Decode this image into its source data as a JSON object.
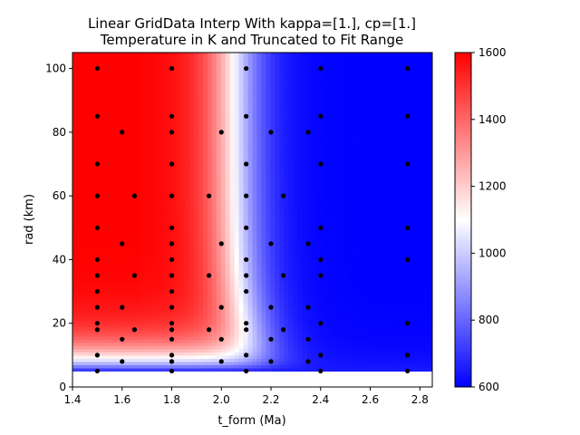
{
  "chart_data": {
    "type": "heatmap",
    "title_line1": "Linear GridData Interp With kappa=[1.], cp=[1.]",
    "title_line2": "Temperature in K and Truncated to Fit Range",
    "xlabel": "t_form (Ma)",
    "ylabel": "rad (km)",
    "xlim": [
      1.4,
      2.85
    ],
    "ylim": [
      0,
      105
    ],
    "xticks": [
      1.4,
      1.6,
      1.8,
      2.0,
      2.2,
      2.4,
      2.6,
      2.8
    ],
    "xtick_labels": [
      "1.4",
      "1.6",
      "1.8",
      "2.0",
      "2.2",
      "2.4",
      "2.6",
      "2.8"
    ],
    "yticks": [
      0,
      20,
      40,
      60,
      80,
      100
    ],
    "ytick_labels": [
      "0",
      "20",
      "40",
      "60",
      "80",
      "100"
    ],
    "colorbar": {
      "min": 600,
      "max": 1600,
      "ticks": [
        600,
        800,
        1000,
        1200,
        1400,
        1600
      ],
      "tick_labels": [
        "600",
        "800",
        "1000",
        "1200",
        "1400",
        "1600"
      ],
      "colors": {
        "low": "#0000ff",
        "mid": "#ffffff",
        "high": "#ff0000"
      }
    },
    "filled_region_radius_min_km": 5,
    "points": [
      [
        1.5,
        100
      ],
      [
        1.5,
        85
      ],
      [
        1.5,
        70
      ],
      [
        1.5,
        60
      ],
      [
        1.5,
        50
      ],
      [
        1.5,
        40
      ],
      [
        1.5,
        35
      ],
      [
        1.5,
        30
      ],
      [
        1.5,
        25
      ],
      [
        1.5,
        20
      ],
      [
        1.5,
        18
      ],
      [
        1.5,
        10
      ],
      [
        1.5,
        5
      ],
      [
        1.6,
        80
      ],
      [
        1.6,
        45
      ],
      [
        1.6,
        25
      ],
      [
        1.6,
        15
      ],
      [
        1.6,
        8
      ],
      [
        1.65,
        60
      ],
      [
        1.65,
        35
      ],
      [
        1.65,
        18
      ],
      [
        1.8,
        100
      ],
      [
        1.8,
        85
      ],
      [
        1.8,
        80
      ],
      [
        1.8,
        70
      ],
      [
        1.8,
        60
      ],
      [
        1.8,
        50
      ],
      [
        1.8,
        45
      ],
      [
        1.8,
        40
      ],
      [
        1.8,
        35
      ],
      [
        1.8,
        30
      ],
      [
        1.8,
        25
      ],
      [
        1.8,
        20
      ],
      [
        1.8,
        18
      ],
      [
        1.8,
        15
      ],
      [
        1.8,
        10
      ],
      [
        1.8,
        8
      ],
      [
        1.8,
        5
      ],
      [
        1.95,
        60
      ],
      [
        1.95,
        35
      ],
      [
        1.95,
        18
      ],
      [
        2.0,
        80
      ],
      [
        2.0,
        45
      ],
      [
        2.0,
        25
      ],
      [
        2.0,
        15
      ],
      [
        2.0,
        8
      ],
      [
        2.1,
        100
      ],
      [
        2.1,
        85
      ],
      [
        2.1,
        70
      ],
      [
        2.1,
        60
      ],
      [
        2.1,
        50
      ],
      [
        2.1,
        40
      ],
      [
        2.1,
        35
      ],
      [
        2.1,
        30
      ],
      [
        2.1,
        20
      ],
      [
        2.1,
        18
      ],
      [
        2.1,
        10
      ],
      [
        2.1,
        5
      ],
      [
        2.2,
        80
      ],
      [
        2.2,
        45
      ],
      [
        2.2,
        25
      ],
      [
        2.2,
        15
      ],
      [
        2.2,
        8
      ],
      [
        2.25,
        60
      ],
      [
        2.25,
        35
      ],
      [
        2.25,
        18
      ],
      [
        2.35,
        80
      ],
      [
        2.35,
        45
      ],
      [
        2.35,
        25
      ],
      [
        2.35,
        15
      ],
      [
        2.35,
        8
      ],
      [
        2.4,
        100
      ],
      [
        2.4,
        85
      ],
      [
        2.4,
        70
      ],
      [
        2.4,
        50
      ],
      [
        2.4,
        40
      ],
      [
        2.4,
        35
      ],
      [
        2.4,
        20
      ],
      [
        2.4,
        10
      ],
      [
        2.4,
        5
      ],
      [
        2.75,
        100
      ],
      [
        2.75,
        85
      ],
      [
        2.75,
        70
      ],
      [
        2.75,
        50
      ],
      [
        2.75,
        40
      ],
      [
        2.75,
        20
      ],
      [
        2.75,
        10
      ],
      [
        2.75,
        5
      ]
    ]
  }
}
